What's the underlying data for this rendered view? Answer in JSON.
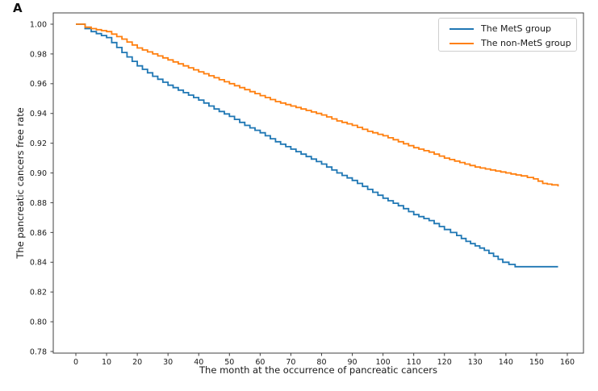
{
  "figure": {
    "panel_label": "A"
  },
  "chart_data": {
    "type": "line",
    "subtype": "kaplan-meier-step",
    "title": "",
    "xlabel": "The month at the occurrence of pancreatic cancers",
    "ylabel": "The pancreatic cancers free rate",
    "xlim": [
      -8,
      165
    ],
    "ylim": [
      0.778,
      1.008
    ],
    "x_ticks": [
      "0",
      "10",
      "20",
      "30",
      "40",
      "50",
      "60",
      "70",
      "80",
      "90",
      "100",
      "110",
      "120",
      "130",
      "140",
      "150",
      "160"
    ],
    "y_ticks": [
      "0.78",
      "0.80",
      "0.82",
      "0.84",
      "0.86",
      "0.88",
      "0.90",
      "0.92",
      "0.94",
      "0.96",
      "0.98",
      "1.00"
    ],
    "grid": false,
    "legend_position": "upper right",
    "frame_color": "#404040",
    "series": [
      {
        "name": "The MetS group",
        "color": "#1f77b4",
        "months": [
          0,
          1,
          3,
          5,
          10,
          15,
          20,
          25,
          30,
          35,
          40,
          45,
          50,
          55,
          60,
          65,
          70,
          75,
          80,
          85,
          90,
          95,
          100,
          105,
          110,
          115,
          120,
          124,
          127,
          130,
          133,
          136,
          139,
          143,
          157
        ],
        "values": [
          1.0,
          1.0,
          0.997,
          0.995,
          0.991,
          0.981,
          0.972,
          0.965,
          0.959,
          0.954,
          0.949,
          0.943,
          0.938,
          0.932,
          0.927,
          0.921,
          0.916,
          0.911,
          0.906,
          0.9,
          0.895,
          0.889,
          0.883,
          0.878,
          0.872,
          0.868,
          0.862,
          0.858,
          0.854,
          0.851,
          0.848,
          0.844,
          0.84,
          0.837,
          0.837
        ]
      },
      {
        "name": "The non-MetS group",
        "color": "#ff7f0e",
        "months": [
          0,
          1,
          3,
          5,
          10,
          15,
          20,
          25,
          30,
          35,
          40,
          45,
          50,
          55,
          60,
          65,
          70,
          75,
          80,
          85,
          90,
          95,
          100,
          105,
          110,
          115,
          120,
          125,
          130,
          135,
          140,
          145,
          149,
          152,
          155,
          157
        ],
        "values": [
          1.0,
          1.0,
          0.998,
          0.997,
          0.995,
          0.99,
          0.984,
          0.98,
          0.976,
          0.972,
          0.968,
          0.964,
          0.96,
          0.956,
          0.952,
          0.948,
          0.945,
          0.942,
          0.939,
          0.935,
          0.932,
          0.928,
          0.925,
          0.921,
          0.917,
          0.914,
          0.91,
          0.907,
          0.904,
          0.902,
          0.9,
          0.898,
          0.896,
          0.893,
          0.892,
          0.891
        ]
      }
    ]
  }
}
